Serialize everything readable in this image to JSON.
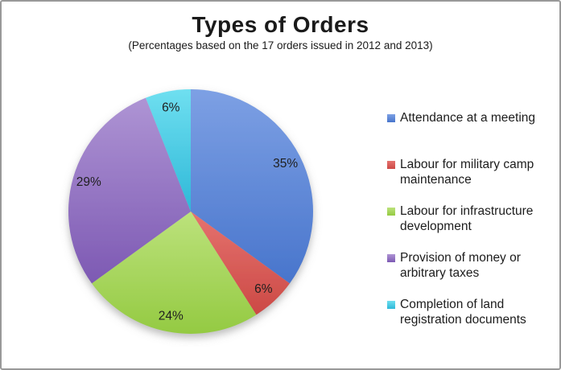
{
  "chart_data": {
    "type": "pie",
    "title": "Types of Orders",
    "subtitle": "(Percentages based on the 17 orders issued in 2012 and 2013)",
    "legend_position": "right",
    "start_angle_deg": 0,
    "direction": "clockwise",
    "slices": [
      {
        "label": "Attendance at a meeting",
        "value": 35,
        "pct_label": "35%",
        "color_light": "#7da0e4",
        "color_dark": "#4875cc"
      },
      {
        "label": "Labour for military camp maintenance",
        "value": 6,
        "pct_label": "6%",
        "color_light": "#e5736f",
        "color_dark": "#cc4945"
      },
      {
        "label": "Labour for infrastructure development",
        "value": 24,
        "pct_label": "24%",
        "color_light": "#bce27c",
        "color_dark": "#94ca42"
      },
      {
        "label": "Provision of money or arbitrary taxes",
        "value": 29,
        "pct_label": "29%",
        "color_light": "#ae94d4",
        "color_dark": "#7d59b3"
      },
      {
        "label": "Completion of land registration documents",
        "value": 6,
        "pct_label": "6%",
        "color_light": "#6fdff0",
        "color_dark": "#2eb8d8"
      }
    ]
  },
  "frame": {
    "border_color": "#999999",
    "background": "#ffffff"
  }
}
